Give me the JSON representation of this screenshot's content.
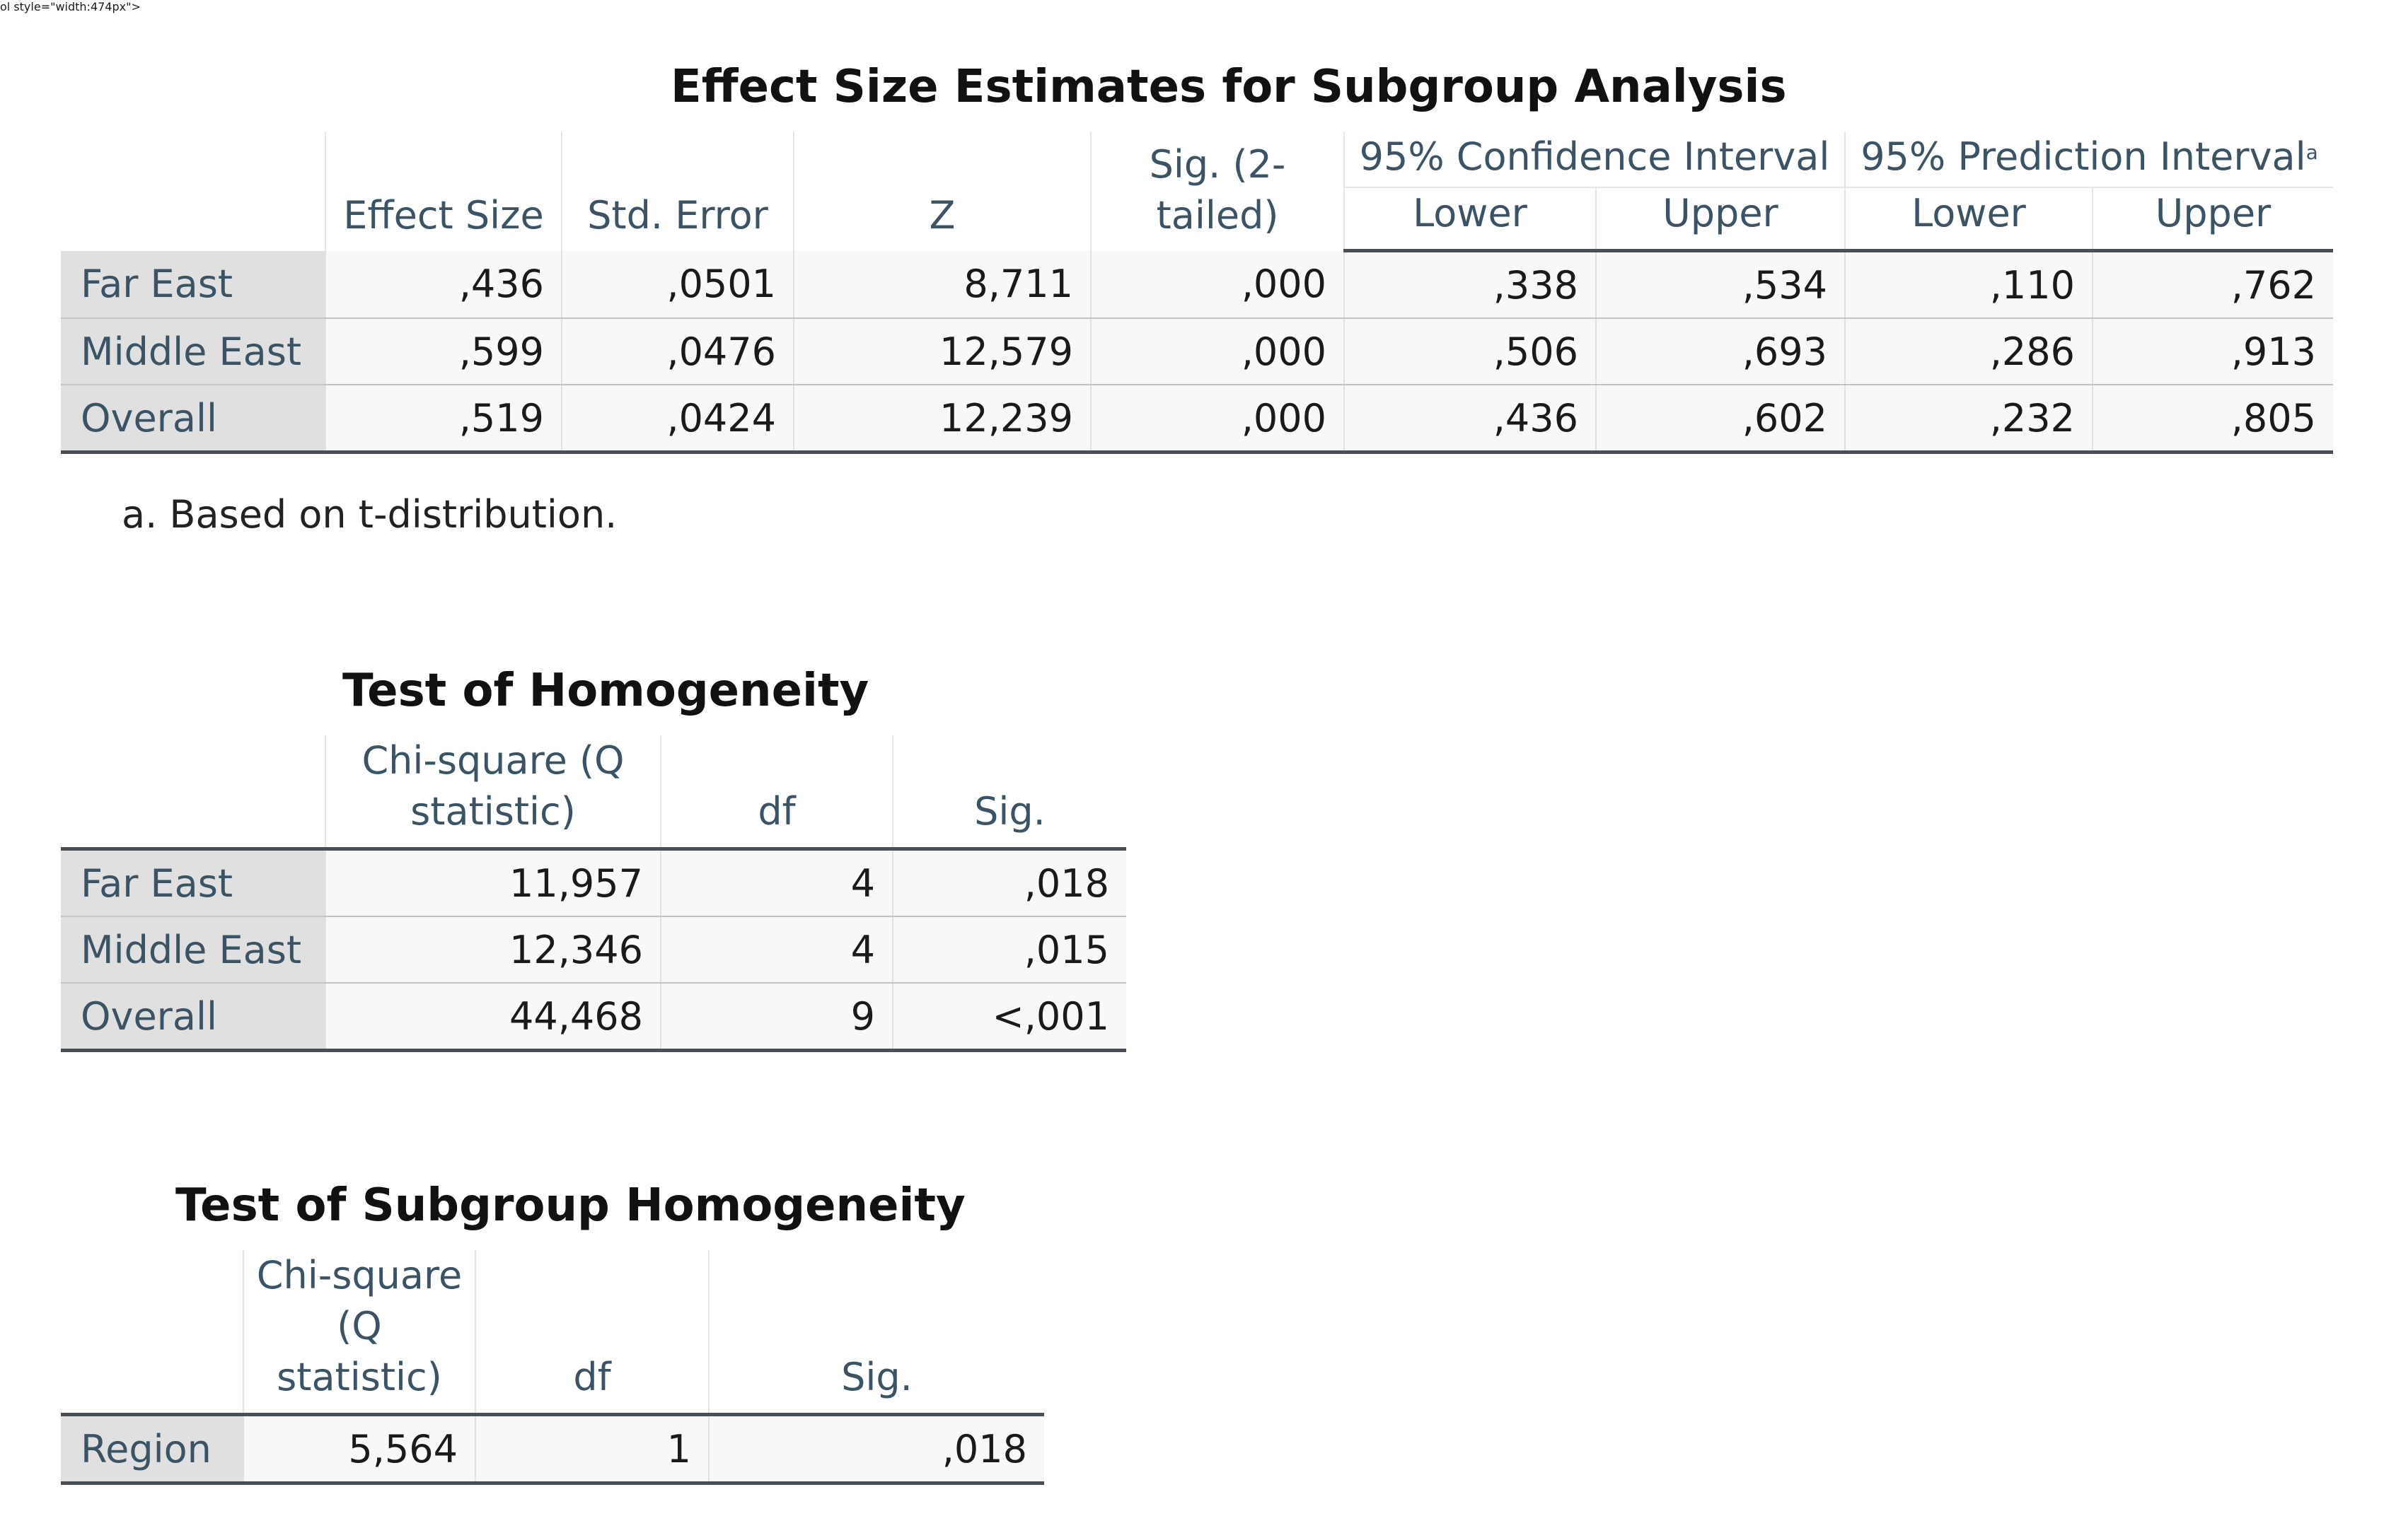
{
  "effect_size": {
    "title": "Effect Size Estimates for Subgroup Analysis",
    "headers": {
      "effect_size": "Effect Size",
      "std_error": "Std. Error",
      "z": "Z",
      "sig": "Sig. (2-tailed)",
      "ci_group": "95% Confidence Interval",
      "pi_group": "95% Prediction Interval",
      "pi_sup": "a",
      "lower": "Lower",
      "upper": "Upper"
    },
    "rows": [
      {
        "label": "Far East",
        "effect_size": ",436",
        "std_error": ",0501",
        "z": "8,711",
        "sig": ",000",
        "ci_lower": ",338",
        "ci_upper": ",534",
        "pi_lower": ",110",
        "pi_upper": ",762"
      },
      {
        "label": "Middle East",
        "effect_size": ",599",
        "std_error": ",0476",
        "z": "12,579",
        "sig": ",000",
        "ci_lower": ",506",
        "ci_upper": ",693",
        "pi_lower": ",286",
        "pi_upper": ",913"
      },
      {
        "label": "Overall",
        "effect_size": ",519",
        "std_error": ",0424",
        "z": "12,239",
        "sig": ",000",
        "ci_lower": ",436",
        "ci_upper": ",602",
        "pi_lower": ",232",
        "pi_upper": ",805"
      }
    ],
    "footnote": "a. Based on t-distribution."
  },
  "homogeneity": {
    "title": "Test of Homogeneity",
    "headers": {
      "chi_line1": "Chi-square (Q",
      "chi_line2": "statistic)",
      "df": "df",
      "sig": "Sig."
    },
    "rows": [
      {
        "label": "Far East",
        "chi": "11,957",
        "df": "4",
        "sig": ",018"
      },
      {
        "label": "Middle East",
        "chi": "12,346",
        "df": "4",
        "sig": ",015"
      },
      {
        "label": "Overall",
        "chi": "44,468",
        "df": "9",
        "sig": "<,001"
      }
    ]
  },
  "subgroup": {
    "title": "Test of Subgroup Homogeneity",
    "headers": {
      "chi_line1": "Chi-square (Q",
      "chi_line2": "statistic)",
      "df": "df",
      "sig": "Sig."
    },
    "rows": [
      {
        "label": "Region",
        "chi": "5,564",
        "df": "1",
        "sig": ",018"
      }
    ]
  }
}
